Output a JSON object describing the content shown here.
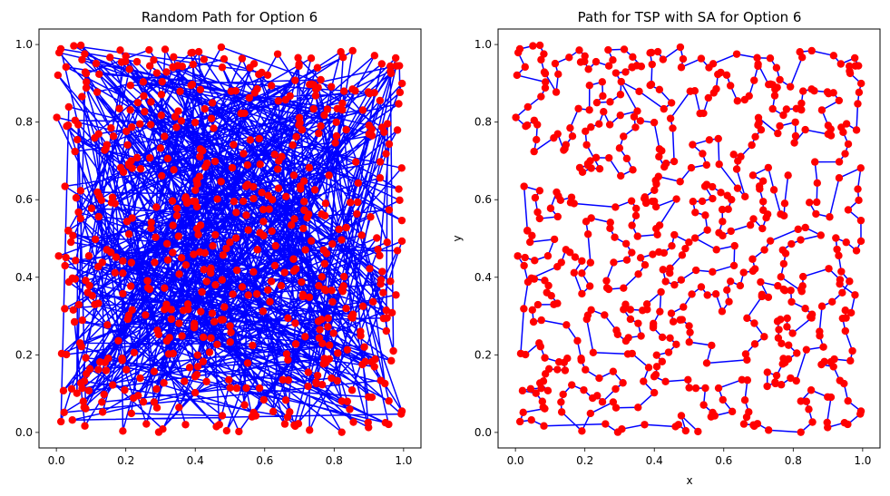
{
  "chart_data": [
    {
      "type": "line",
      "title": "Random Path for Option 6",
      "xlabel": "",
      "ylabel": "",
      "xlim": [
        -0.05,
        1.05
      ],
      "ylim": [
        -0.04,
        1.04
      ],
      "xticks": [
        "0.0",
        "0.2",
        "0.4",
        "0.6",
        "0.8",
        "1.0"
      ],
      "yticks": [
        "0.0",
        "0.2",
        "0.4",
        "0.6",
        "0.8",
        "1.0"
      ],
      "grid": false,
      "marker_color": "#ff0000",
      "line_color": "#0000ff",
      "path_order": "random",
      "num_points": 600
    },
    {
      "type": "line",
      "title": "Path for TSP with SA for Option 6",
      "xlabel": "x",
      "ylabel": "y",
      "xlim": [
        -0.05,
        1.05
      ],
      "ylim": [
        -0.04,
        1.04
      ],
      "xticks": [
        "0.0",
        "0.2",
        "0.4",
        "0.6",
        "0.8",
        "1.0"
      ],
      "yticks": [
        "0.0",
        "0.2",
        "0.4",
        "0.6",
        "0.8",
        "1.0"
      ],
      "grid": false,
      "marker_color": "#ff0000",
      "line_color": "#0000ff",
      "path_order": "simulated-annealing",
      "num_points": 600
    }
  ]
}
